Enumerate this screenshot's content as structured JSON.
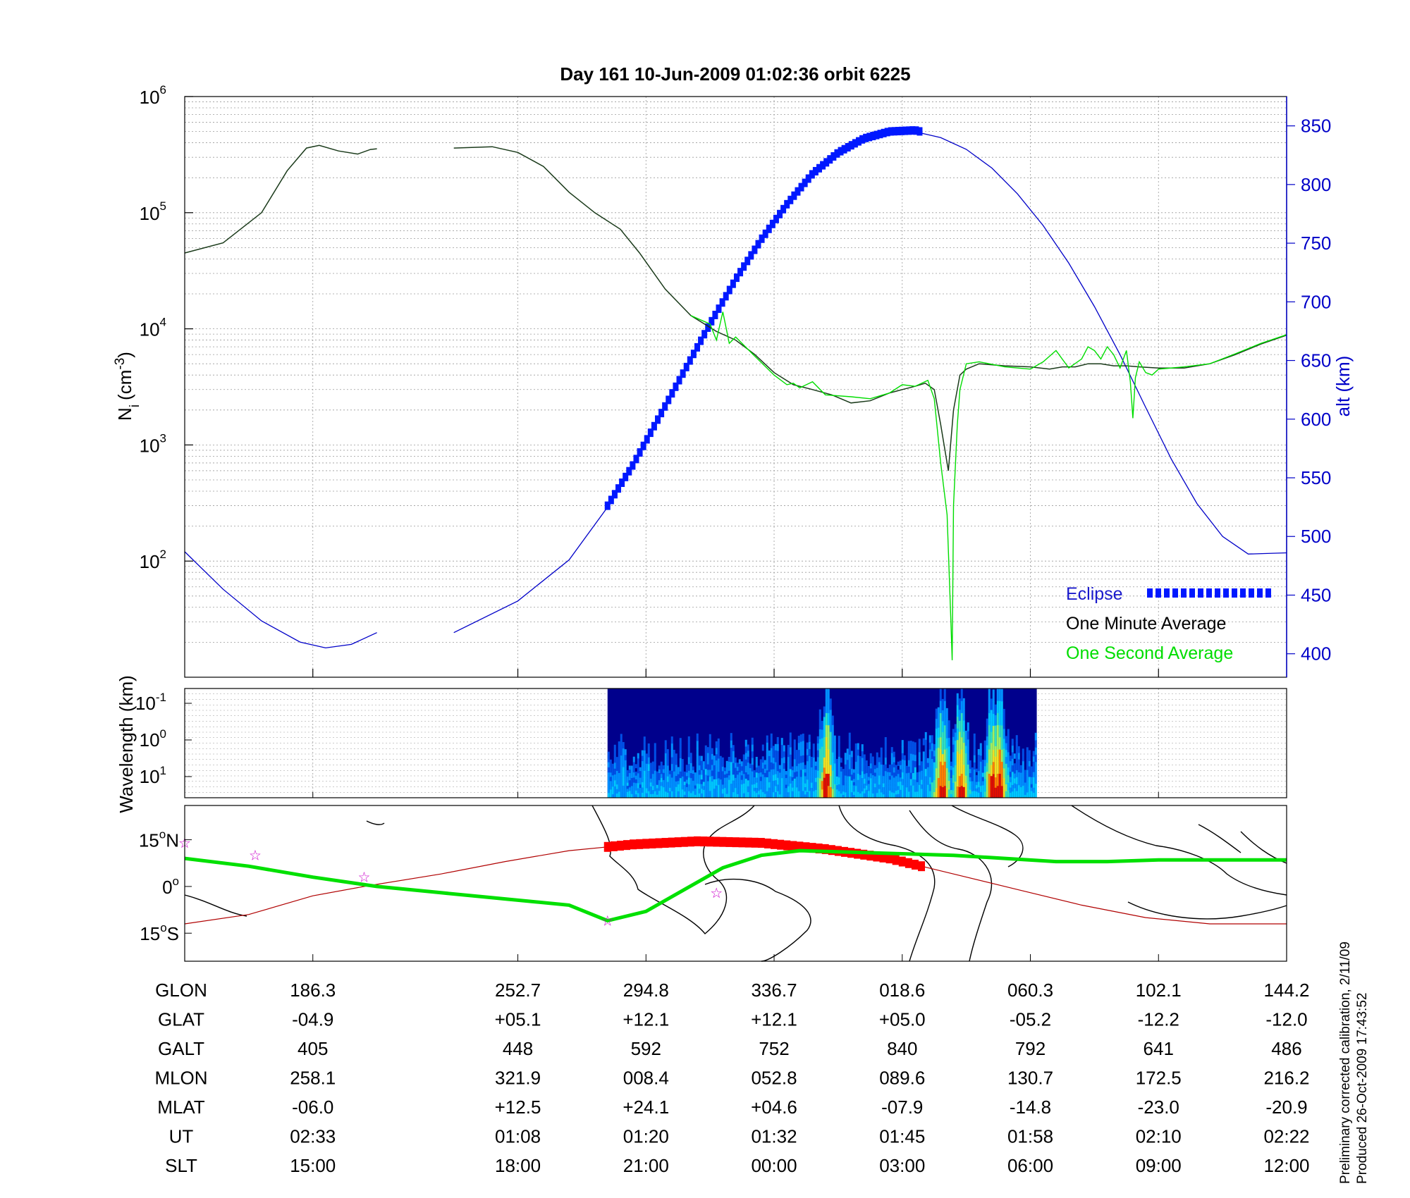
{
  "title": "Day 161  10-Jun-2009 01:02:36   orbit 6225",
  "colors": {
    "background": "#ffffff",
    "axis": "#000000",
    "grid": "#9a9a9a",
    "altitude": "#0000c8",
    "eclipse": "#0018ff",
    "one_minute": "#1a3a1a",
    "one_second": "#00dd00",
    "ground_track": "#b00000",
    "ground_track_marker": "#ff0000",
    "magnetic_equator": "#00e000",
    "star": "#cc00cc",
    "spectrogram_background": "#00008c"
  },
  "chart_data": [
    {
      "type": "line",
      "panel": "ion-density",
      "ylabel": "N",
      "ylabel_subscript": "i",
      "ylabel_unit": "(cm",
      "ylabel_unit_sup": "-3",
      "ylabel_unit_close": ")",
      "yscale": "log",
      "ylim": [
        10,
        1000000
      ],
      "yticks": [
        {
          "base": "10",
          "exp": "2",
          "value": 100
        },
        {
          "base": "10",
          "exp": "3",
          "value": 1000
        },
        {
          "base": "10",
          "exp": "4",
          "value": 10000
        },
        {
          "base": "10",
          "exp": "5",
          "value": 100000
        },
        {
          "base": "10",
          "exp": "6",
          "value": 1000000
        }
      ],
      "y2label": "alt (km)",
      "y2lim": [
        380,
        875
      ],
      "y2ticks": [
        "400",
        "450",
        "500",
        "550",
        "600",
        "650",
        "700",
        "750",
        "800",
        "850"
      ],
      "xlim": [
        0,
        8.6
      ],
      "grid": true,
      "legend_position": "bottom-right",
      "legend": [
        {
          "label": "Eclipse",
          "color": "#1a1acc"
        },
        {
          "label": "One Minute Average",
          "color": "#000000"
        },
        {
          "label": "One Second Average",
          "color": "#00dd00"
        }
      ],
      "series": [
        {
          "role": "one-minute-average",
          "segments": [
            [
              [
                0,
                45000
              ],
              [
                0.3,
                55000
              ],
              [
                0.6,
                100000
              ],
              [
                0.8,
                230000
              ],
              [
                0.95,
                360000
              ],
              [
                1.05,
                380000
              ],
              [
                1.2,
                340000
              ],
              [
                1.35,
                320000
              ],
              [
                1.45,
                350000
              ],
              [
                1.5,
                355000
              ]
            ],
            [
              [
                2.1,
                360000
              ],
              [
                2.4,
                370000
              ],
              [
                2.6,
                330000
              ],
              [
                2.8,
                250000
              ],
              [
                3.0,
                150000
              ],
              [
                3.2,
                100000
              ],
              [
                3.4,
                72000
              ],
              [
                3.55,
                45000
              ],
              [
                3.75,
                22000
              ],
              [
                3.95,
                13000
              ],
              [
                4.15,
                9500
              ],
              [
                4.3,
                8000
              ],
              [
                4.45,
                6000
              ],
              [
                4.6,
                4200
              ],
              [
                4.75,
                3300
              ],
              [
                4.9,
                3000
              ],
              [
                5.05,
                2700
              ],
              [
                5.2,
                2300
              ],
              [
                5.35,
                2400
              ],
              [
                5.5,
                2800
              ],
              [
                5.6,
                3000
              ],
              [
                5.7,
                3200
              ],
              [
                5.78,
                3400
              ],
              [
                5.85,
                3000
              ],
              [
                5.9,
                1500
              ],
              [
                5.96,
                600
              ],
              [
                6.0,
                2000
              ],
              [
                6.05,
                4000
              ],
              [
                6.1,
                4500
              ],
              [
                6.2,
                5000
              ],
              [
                6.4,
                4800
              ],
              [
                6.6,
                4700
              ],
              [
                6.75,
                4500
              ],
              [
                6.85,
                4700
              ],
              [
                6.95,
                4700
              ],
              [
                7.05,
                5000
              ],
              [
                7.15,
                5000
              ],
              [
                7.25,
                4800
              ],
              [
                7.35,
                4800
              ],
              [
                7.45,
                4700
              ],
              [
                7.6,
                4600
              ],
              [
                7.8,
                4600
              ],
              [
                8.0,
                5000
              ],
              [
                8.2,
                6000
              ],
              [
                8.4,
                7400
              ],
              [
                8.6,
                8800
              ]
            ]
          ]
        },
        {
          "role": "one-second-average",
          "segments": [
            [
              [
                3.95,
                13000
              ],
              [
                4.1,
                11000
              ],
              [
                4.15,
                8000
              ],
              [
                4.2,
                14000
              ],
              [
                4.25,
                7500
              ],
              [
                4.3,
                8500
              ],
              [
                4.45,
                5800
              ],
              [
                4.6,
                4000
              ],
              [
                4.7,
                3300
              ],
              [
                4.75,
                3400
              ],
              [
                4.8,
                3100
              ],
              [
                4.9,
                3500
              ],
              [
                5.0,
                2700
              ],
              [
                5.2,
                2600
              ],
              [
                5.35,
                2500
              ],
              [
                5.5,
                2800
              ],
              [
                5.6,
                3300
              ],
              [
                5.7,
                3200
              ],
              [
                5.8,
                3600
              ],
              [
                5.85,
                2500
              ],
              [
                5.9,
                700
              ],
              [
                5.95,
                250
              ],
              [
                5.98,
                30
              ],
              [
                5.99,
                14
              ],
              [
                6.0,
                300
              ],
              [
                6.03,
                1500
              ],
              [
                6.05,
                3000
              ],
              [
                6.1,
                5000
              ],
              [
                6.2,
                5200
              ],
              [
                6.4,
                4700
              ],
              [
                6.6,
                4500
              ],
              [
                6.7,
                5200
              ],
              [
                6.8,
                6500
              ],
              [
                6.9,
                4600
              ],
              [
                7.0,
                5500
              ],
              [
                7.05,
                7000
              ],
              [
                7.1,
                6500
              ],
              [
                7.15,
                5500
              ],
              [
                7.2,
                7000
              ],
              [
                7.25,
                6000
              ],
              [
                7.3,
                4600
              ],
              [
                7.35,
                6500
              ],
              [
                7.38,
                3500
              ],
              [
                7.4,
                1700
              ],
              [
                7.42,
                3800
              ],
              [
                7.45,
                5200
              ],
              [
                7.5,
                4200
              ],
              [
                7.55,
                4000
              ],
              [
                7.6,
                4500
              ],
              [
                7.8,
                4700
              ],
              [
                8.0,
                5000
              ],
              [
                8.2,
                6100
              ],
              [
                8.4,
                7500
              ],
              [
                8.6,
                8900
              ]
            ]
          ]
        },
        {
          "role": "altitude-km",
          "axis": "y2",
          "segments": [
            [
              [
                0,
                487
              ],
              [
                0.3,
                455
              ],
              [
                0.6,
                428
              ],
              [
                0.9,
                410
              ],
              [
                1.1,
                405
              ],
              [
                1.3,
                408
              ],
              [
                1.5,
                418
              ]
            ],
            [
              [
                2.1,
                418
              ],
              [
                2.6,
                445
              ],
              [
                3.0,
                480
              ],
              [
                3.3,
                525
              ],
              [
                3.5,
                560
              ],
              [
                3.7,
                600
              ],
              [
                3.9,
                640
              ],
              [
                4.1,
                680
              ],
              [
                4.3,
                718
              ],
              [
                4.5,
                752
              ],
              [
                4.7,
                782
              ],
              [
                4.9,
                808
              ],
              [
                5.1,
                826
              ],
              [
                5.3,
                838
              ],
              [
                5.5,
                844
              ],
              [
                5.7,
                845
              ],
              [
                5.9,
                840
              ],
              [
                6.1,
                830
              ],
              [
                6.3,
                814
              ],
              [
                6.5,
                792
              ],
              [
                6.7,
                765
              ],
              [
                6.9,
                733
              ],
              [
                7.1,
                696
              ],
              [
                7.3,
                655
              ],
              [
                7.5,
                610
              ],
              [
                7.7,
                566
              ],
              [
                7.9,
                528
              ],
              [
                8.1,
                500
              ],
              [
                8.3,
                485
              ],
              [
                8.6,
                486
              ]
            ]
          ]
        }
      ],
      "eclipse_x": [
        3.3,
        5.75
      ]
    },
    {
      "type": "heatmap",
      "panel": "wavelength-spectrogram",
      "ylabel": "Wavelength (km)",
      "yticks": [
        {
          "base": "10",
          "exp": "-1"
        },
        {
          "base": "10",
          "exp": "0"
        },
        {
          "base": "10",
          "exp": "1"
        }
      ],
      "data_xlim": [
        3.3,
        6.65
      ],
      "intense_bursts_x": [
        5.0,
        5.9,
        6.05,
        6.3,
        6.35
      ]
    },
    {
      "type": "line",
      "panel": "ground-track-map",
      "yticks": [
        {
          "value": "15",
          "deg": "o",
          "suffix": "N"
        },
        {
          "value": "0",
          "deg": "o",
          "suffix": ""
        },
        {
          "value": "15",
          "deg": "o",
          "suffix": "S"
        }
      ],
      "ylim": [
        -24,
        26
      ],
      "magnetic_equator_lat": [
        [
          0,
          9
        ],
        [
          0.5,
          6.5
        ],
        [
          1,
          3
        ],
        [
          1.5,
          0
        ],
        [
          2,
          -2
        ],
        [
          2.5,
          -4
        ],
        [
          3,
          -6
        ],
        [
          3.3,
          -11
        ],
        [
          3.6,
          -8
        ],
        [
          3.9,
          -1
        ],
        [
          4.2,
          6
        ],
        [
          4.5,
          10
        ],
        [
          4.8,
          11.5
        ],
        [
          5.2,
          11
        ],
        [
          5.6,
          10.5
        ],
        [
          6,
          10
        ],
        [
          6.4,
          9
        ],
        [
          6.8,
          8
        ],
        [
          7.2,
          8
        ],
        [
          7.6,
          8.5
        ],
        [
          8,
          8.5
        ],
        [
          8.6,
          8.5
        ]
      ],
      "ground_track_lat": [
        [
          0,
          -12
        ],
        [
          0.5,
          -9
        ],
        [
          1,
          -3
        ],
        [
          1.4,
          0
        ],
        [
          2,
          4
        ],
        [
          2.5,
          8
        ],
        [
          3,
          11.5
        ],
        [
          3.5,
          13.5
        ],
        [
          4,
          14.5
        ],
        [
          4.5,
          14
        ],
        [
          5,
          12
        ],
        [
          5.5,
          9
        ],
        [
          6,
          4
        ],
        [
          6.5,
          -1
        ],
        [
          7,
          -6
        ],
        [
          7.5,
          -10
        ],
        [
          8,
          -12
        ],
        [
          8.6,
          -12
        ]
      ],
      "orbit_x_range": [
        3.3,
        5.75
      ],
      "stars": [
        [
          0.0,
          14
        ],
        [
          0.55,
          10
        ],
        [
          1.4,
          3
        ],
        [
          3.3,
          -11
        ],
        [
          4.15,
          -2
        ]
      ]
    }
  ],
  "ephemeris": {
    "rows": [
      {
        "label": "GLON",
        "values": [
          "186.3",
          "252.7",
          "294.8",
          "336.7",
          "018.6",
          "060.3",
          "102.1",
          "144.2"
        ]
      },
      {
        "label": "GLAT",
        "values": [
          "-04.9",
          "+05.1",
          "+12.1",
          "+12.1",
          "+05.0",
          "-05.2",
          "-12.2",
          "-12.0"
        ]
      },
      {
        "label": "GALT",
        "values": [
          "405",
          "448",
          "592",
          "752",
          "840",
          "792",
          "641",
          "486"
        ]
      },
      {
        "label": "MLON",
        "values": [
          "258.1",
          "321.9",
          "008.4",
          "052.8",
          "089.6",
          "130.7",
          "172.5",
          "216.2"
        ]
      },
      {
        "label": "MLAT",
        "values": [
          "-06.0",
          "+12.5",
          "+24.1",
          "+04.6",
          "-07.9",
          "-14.8",
          "-23.0",
          "-20.9"
        ]
      },
      {
        "label": "UT",
        "values": [
          "02:33",
          "01:08",
          "01:20",
          "01:32",
          "01:45",
          "01:58",
          "02:10",
          "02:22"
        ]
      },
      {
        "label": "SLT",
        "values": [
          "15:00",
          "18:00",
          "21:00",
          "00:00",
          "03:00",
          "06:00",
          "09:00",
          "12:00"
        ]
      }
    ],
    "column_x": [
      1,
      2.6,
      3.6,
      4.6,
      5.6,
      6.6,
      7.6,
      8.6
    ]
  },
  "footnote": {
    "line1": "Preliminary corrected calibration, 2/11/09",
    "line2": "Produced 26-Oct-2009 17:43:52"
  }
}
